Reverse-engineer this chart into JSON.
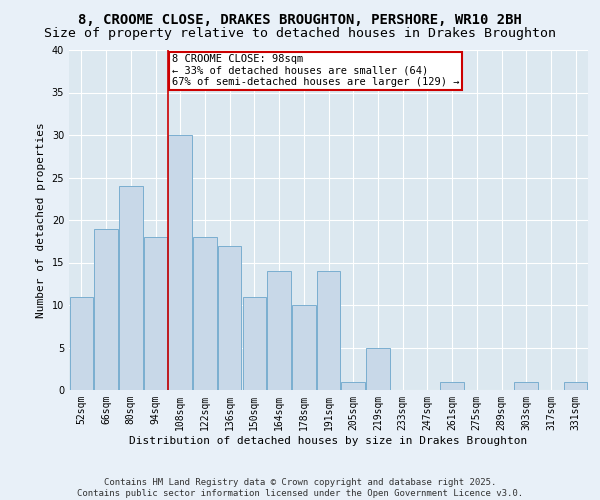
{
  "title1": "8, CROOME CLOSE, DRAKES BROUGHTON, PERSHORE, WR10 2BH",
  "title2": "Size of property relative to detached houses in Drakes Broughton",
  "xlabel": "Distribution of detached houses by size in Drakes Broughton",
  "ylabel": "Number of detached properties",
  "categories": [
    "52sqm",
    "66sqm",
    "80sqm",
    "94sqm",
    "108sqm",
    "122sqm",
    "136sqm",
    "150sqm",
    "164sqm",
    "178sqm",
    "191sqm",
    "205sqm",
    "219sqm",
    "233sqm",
    "247sqm",
    "261sqm",
    "275sqm",
    "289sqm",
    "303sqm",
    "317sqm",
    "331sqm"
  ],
  "values": [
    11,
    19,
    24,
    18,
    30,
    18,
    17,
    11,
    14,
    10,
    14,
    1,
    5,
    0,
    0,
    1,
    0,
    0,
    1,
    0,
    1
  ],
  "bar_color": "#c8d8e8",
  "bar_edge_color": "#7aaed0",
  "background_color": "#dce8f0",
  "grid_color": "#ffffff",
  "fig_bg_color": "#e8f0f8",
  "ylim": [
    0,
    40
  ],
  "yticks": [
    0,
    5,
    10,
    15,
    20,
    25,
    30,
    35,
    40
  ],
  "red_line_x": 3.5,
  "annotation_text": "8 CROOME CLOSE: 98sqm\n← 33% of detached houses are smaller (64)\n67% of semi-detached houses are larger (129) →",
  "annotation_box_color": "#ffffff",
  "annotation_box_edge": "#cc0000",
  "footer1": "Contains HM Land Registry data © Crown copyright and database right 2025.",
  "footer2": "Contains public sector information licensed under the Open Government Licence v3.0.",
  "title_fontsize": 10,
  "subtitle_fontsize": 9.5,
  "axis_label_fontsize": 8,
  "tick_fontsize": 7,
  "footer_fontsize": 6.5,
  "ann_fontsize": 7.5
}
